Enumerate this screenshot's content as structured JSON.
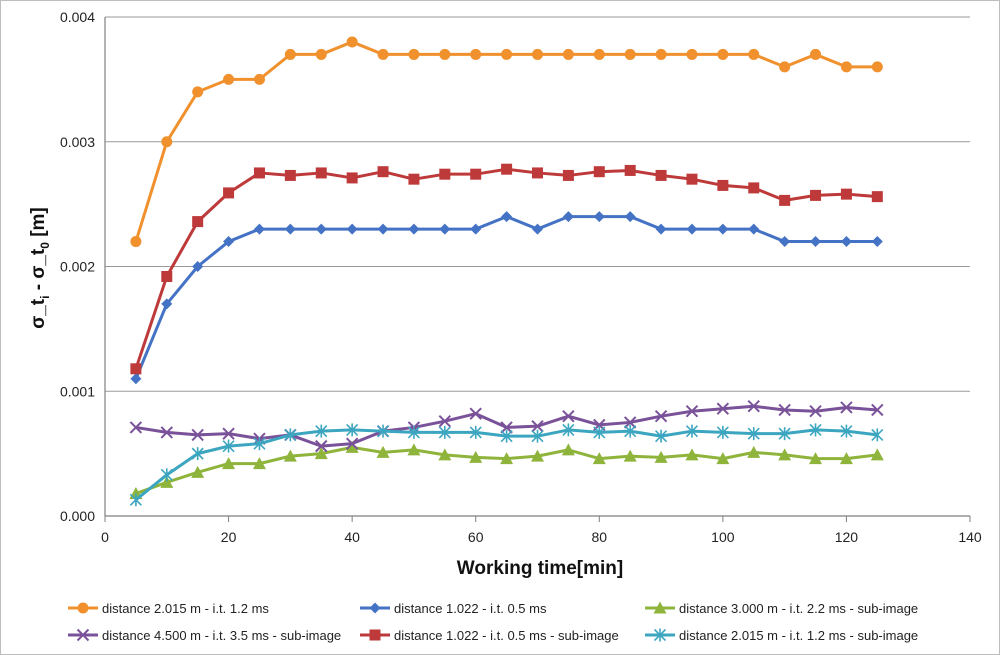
{
  "chart_data": {
    "type": "line",
    "title": "",
    "xlabel": "Working time[min]",
    "ylabel": "σ_t",
    "ylabel_sub": "i",
    "ylabel_rest": " - σ_t",
    "ylabel_sub2": "0",
    "ylabel_unit": " [m]",
    "xlim": [
      0,
      140
    ],
    "ylim": [
      0,
      0.004
    ],
    "xticks": [
      "0",
      "20",
      "40",
      "60",
      "80",
      "100",
      "120",
      "140"
    ],
    "yticks": [
      "0.000",
      "0.001",
      "0.002",
      "0.003",
      "0.004"
    ],
    "grid": "horizontal",
    "legend_position": "bottom",
    "x": [
      5,
      10,
      15,
      20,
      25,
      30,
      35,
      40,
      45,
      50,
      55,
      60,
      65,
      70,
      75,
      80,
      85,
      90,
      95,
      100,
      105,
      110,
      115,
      120,
      125
    ],
    "series": [
      {
        "name": "distance 2.015 m - i.t. 1.2 ms",
        "color": "#F0912E",
        "marker": "circle",
        "values": [
          0.0022,
          0.003,
          0.0034,
          0.0035,
          0.0035,
          0.0037,
          0.0037,
          0.0038,
          0.0037,
          0.0037,
          0.0037,
          0.0037,
          0.0037,
          0.0037,
          0.0037,
          0.0037,
          0.0037,
          0.0037,
          0.0037,
          0.0037,
          0.0037,
          0.0036,
          0.0037,
          0.0036,
          0.0036
        ]
      },
      {
        "name": "distance 1.022 - i.t. 0.5 ms",
        "color": "#4472C4",
        "marker": "diamond",
        "values": [
          0.0011,
          0.0017,
          0.002,
          0.0022,
          0.0023,
          0.0023,
          0.0023,
          0.0023,
          0.0023,
          0.0023,
          0.0023,
          0.0023,
          0.0024,
          0.0023,
          0.0024,
          0.0024,
          0.0024,
          0.0023,
          0.0023,
          0.0023,
          0.0023,
          0.0022,
          0.0022,
          0.0022,
          0.0022
        ]
      },
      {
        "name": "distance 3.000 m - i.t. 2.2 ms - sub-image",
        "color": "#8FB43C",
        "marker": "triangle",
        "values": [
          0.00018,
          0.00027,
          0.00035,
          0.00042,
          0.00042,
          0.00048,
          0.0005,
          0.00055,
          0.00051,
          0.00053,
          0.00049,
          0.00047,
          0.00046,
          0.00048,
          0.00053,
          0.00046,
          0.00048,
          0.00047,
          0.00049,
          0.00046,
          0.00051,
          0.00049,
          0.00046,
          0.00046,
          0.00049
        ]
      },
      {
        "name": "distance 4.500 m - i.t. 3.5 ms - sub-image",
        "color": "#7A5299",
        "marker": "x",
        "values": [
          0.00071,
          0.00067,
          0.00065,
          0.00066,
          0.00062,
          0.00065,
          0.00056,
          0.00058,
          0.00068,
          0.00071,
          0.00076,
          0.00082,
          0.00071,
          0.00072,
          0.0008,
          0.00073,
          0.00075,
          0.0008,
          0.00084,
          0.00086,
          0.00088,
          0.00085,
          0.00084,
          0.00087,
          0.00085
        ]
      },
      {
        "name": "distance 1.022 - i.t. 0.5 ms - sub-image",
        "color": "#BE3A3A",
        "marker": "square",
        "values": [
          0.00118,
          0.00192,
          0.00236,
          0.00259,
          0.00275,
          0.00273,
          0.00275,
          0.00271,
          0.00276,
          0.0027,
          0.00274,
          0.00274,
          0.00278,
          0.00275,
          0.00273,
          0.00276,
          0.00277,
          0.00273,
          0.0027,
          0.00265,
          0.00263,
          0.00253,
          0.00257,
          0.00258,
          0.00256
        ]
      },
      {
        "name": "distance 2.015 m - i.t. 1.2 ms - sub-image",
        "color": "#3CA6C0",
        "marker": "asterisk",
        "values": [
          0.00013,
          0.00033,
          0.0005,
          0.00056,
          0.00058,
          0.00065,
          0.00068,
          0.00069,
          0.00068,
          0.00067,
          0.00067,
          0.00067,
          0.00064,
          0.00064,
          0.00069,
          0.00067,
          0.00068,
          0.00064,
          0.00068,
          0.00067,
          0.00066,
          0.00066,
          0.00069,
          0.00068,
          0.00065
        ]
      }
    ]
  }
}
